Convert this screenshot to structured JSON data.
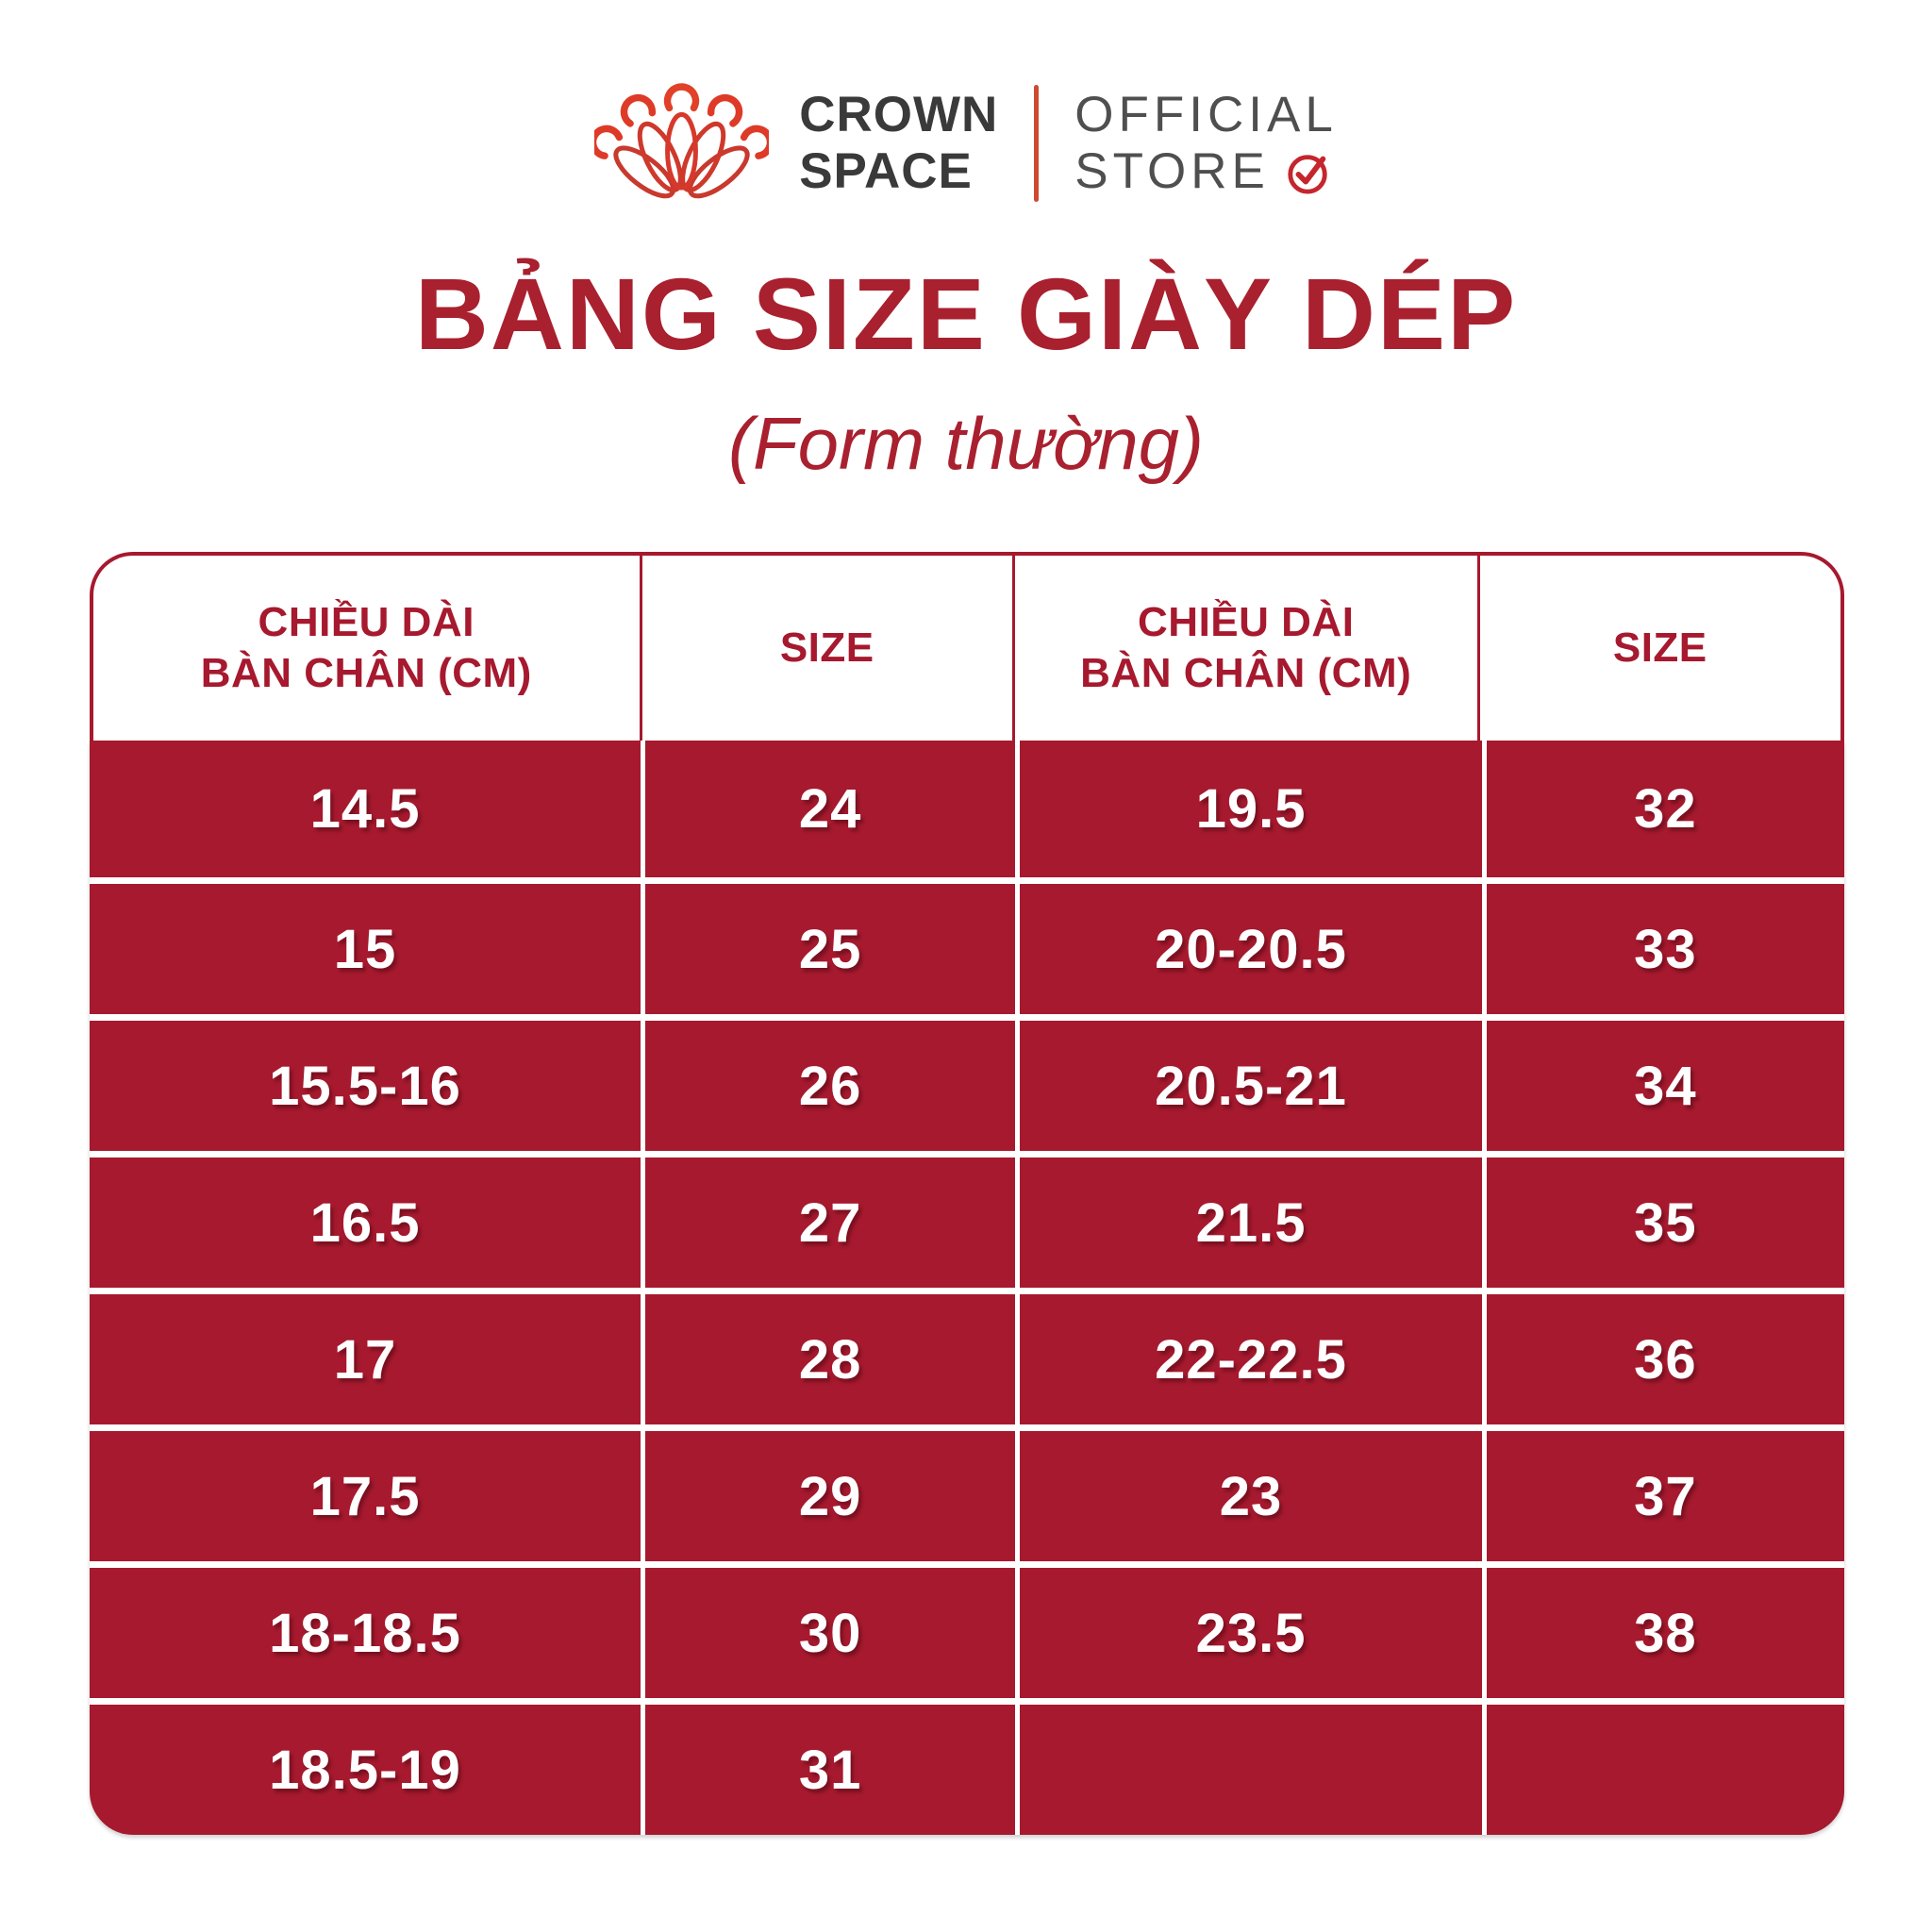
{
  "brand": {
    "name_line1": "CROWN",
    "name_line2": "SPACE",
    "store_line1": "OFFICIAL",
    "store_line2": "STORE",
    "icons": {
      "crown": "crown-logo-icon",
      "verified": "verified-check-icon"
    }
  },
  "title": "BẢNG SIZE GIÀY DÉP",
  "subtitle": "(Form thường)",
  "colors": {
    "table_red": "#A6192E",
    "title_red": "#A9202F",
    "logo_red": "#D6392C",
    "divider_orange": "#CE4A2E",
    "check_red": "#C5262C",
    "brand_text_dark": "#3A3A3A",
    "store_text_gray": "#4F4F4F",
    "cell_text": "#FFFFFF"
  },
  "table": {
    "headers": [
      [
        "CHIỀU DÀI",
        "BÀN CHÂN (CM)"
      ],
      [
        "SIZE"
      ],
      [
        "CHIỀU DÀI",
        "BÀN CHÂN (CM)"
      ],
      [
        "SIZE"
      ]
    ],
    "rows": [
      [
        "14.5",
        "24",
        "19.5",
        "32"
      ],
      [
        "15",
        "25",
        "20-20.5",
        "33"
      ],
      [
        "15.5-16",
        "26",
        "20.5-21",
        "34"
      ],
      [
        "16.5",
        "27",
        "21.5",
        "35"
      ],
      [
        "17",
        "28",
        "22-22.5",
        "36"
      ],
      [
        "17.5",
        "29",
        "23",
        "37"
      ],
      [
        "18-18.5",
        "30",
        "23.5",
        "38"
      ],
      [
        "18.5-19",
        "31",
        "",
        ""
      ]
    ]
  }
}
